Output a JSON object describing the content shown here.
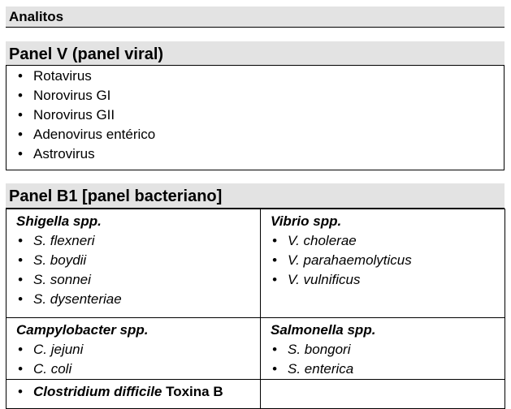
{
  "analitos": {
    "title": "Analitos"
  },
  "panel_v": {
    "title": "Panel V (panel viral)",
    "items": [
      "Rotavirus",
      "Norovirus GI",
      "Norovirus GII",
      "Adenovirus entérico",
      "Astrovirus"
    ]
  },
  "panel_b1": {
    "title": "Panel B1 [panel bacteriano]",
    "shigella": {
      "title": "Shigella spp.",
      "items": [
        "S. flexneri",
        "S. boydii",
        "S. sonnei",
        "S. dysenteriae"
      ]
    },
    "vibrio": {
      "title": "Vibrio spp.",
      "items": [
        "V. cholerae",
        "V. parahaemolyticus",
        "V. vulnificus"
      ]
    },
    "campylobacter": {
      "title": "Campylobacter spp.",
      "items": [
        "C. jejuni",
        "C. coli"
      ]
    },
    "salmonella": {
      "title": "Salmonella spp.",
      "items": [
        "S. bongori",
        "S. enterica"
      ]
    },
    "clostridium": {
      "organism": "Clostridium difficile",
      "toxin": " Toxina B"
    }
  }
}
